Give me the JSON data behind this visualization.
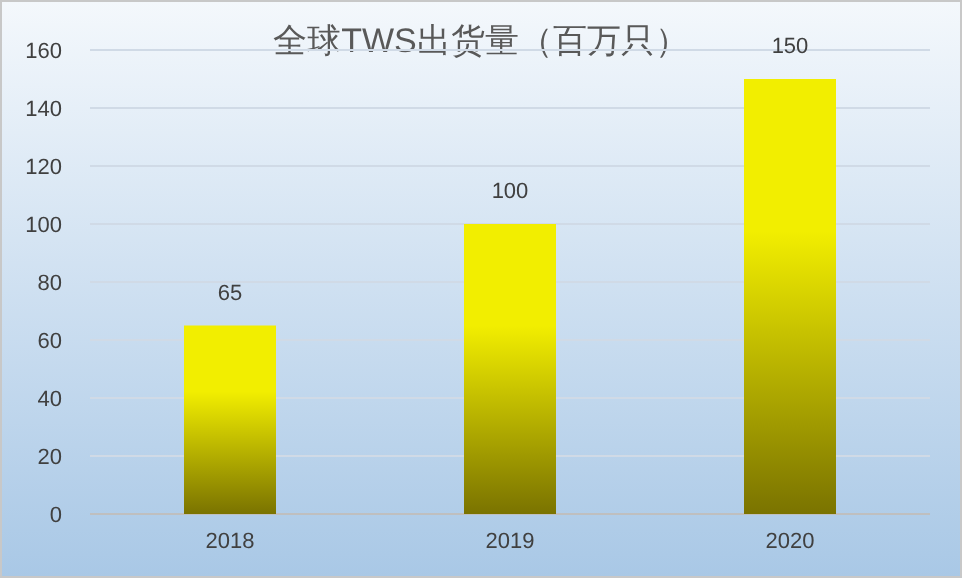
{
  "chart_data": {
    "type": "bar",
    "title": "全球TWS出货量（百万只）",
    "categories": [
      "2018",
      "2019",
      "2020"
    ],
    "values": [
      65,
      100,
      150
    ],
    "color": "#f2ee00",
    "ylim": [
      0,
      160
    ],
    "yticks": [
      0,
      20,
      40,
      60,
      80,
      100,
      120,
      140,
      160
    ],
    "grid": "y",
    "data_labels": true
  }
}
